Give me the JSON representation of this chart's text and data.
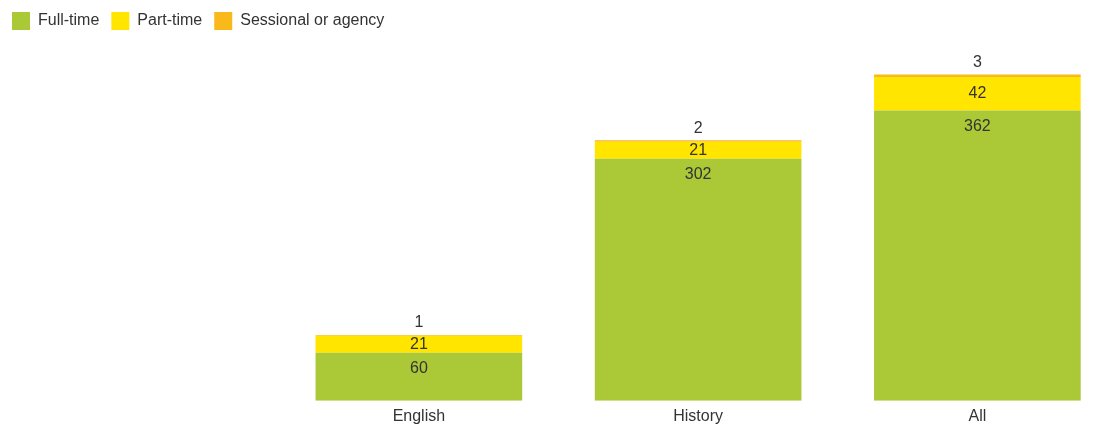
{
  "chart_data": {
    "type": "bar",
    "stacked": true,
    "categories": [
      null,
      "English",
      "History",
      "All"
    ],
    "series": [
      {
        "name": "Full-time",
        "color": "#abc837",
        "values": [
          null,
          60,
          302,
          362
        ]
      },
      {
        "name": "Part-time",
        "color": "#ffe500",
        "values": [
          null,
          21,
          21,
          42
        ]
      },
      {
        "name": "Sessional or agency",
        "color": "#f9b91b",
        "values": [
          null,
          1,
          2,
          3
        ]
      }
    ],
    "data_labels": true,
    "legend": "top left",
    "grid": false,
    "tick_labels": "x"
  }
}
